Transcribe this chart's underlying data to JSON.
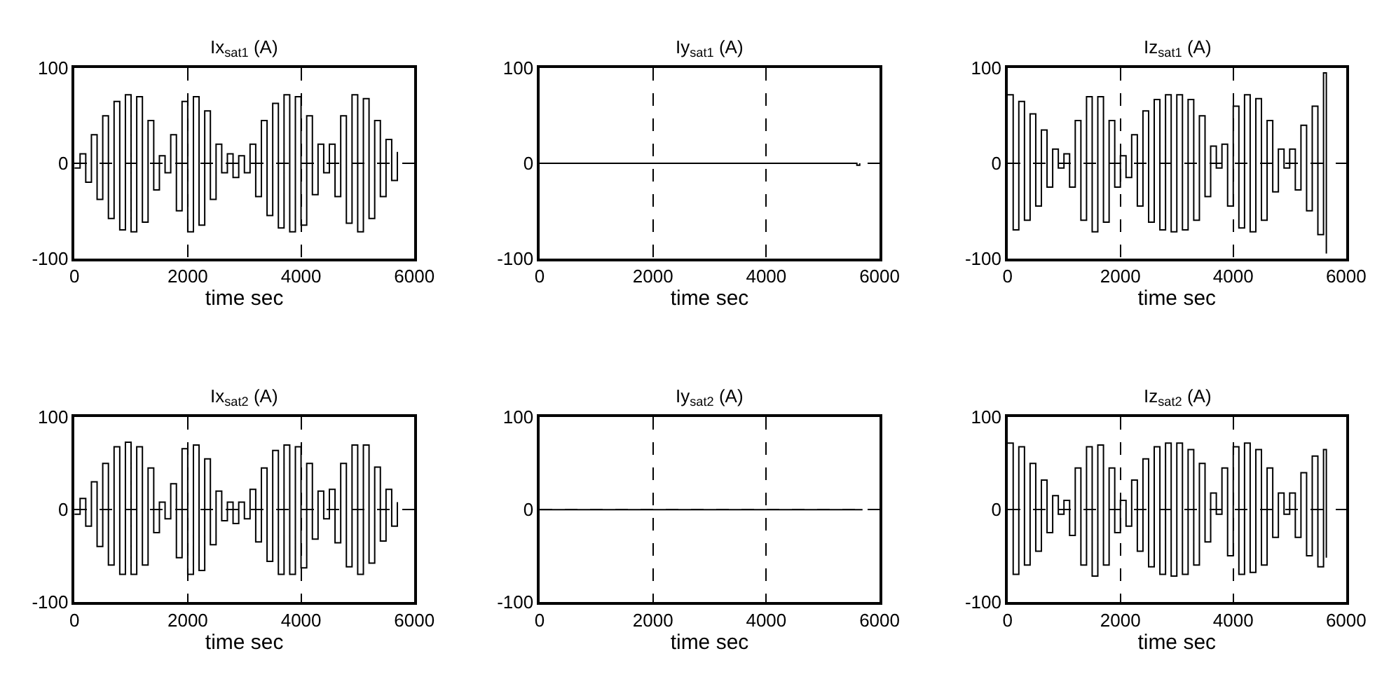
{
  "chart_data": [
    {
      "type": "step",
      "title": "Ix$_{sat1}$ (A)",
      "xlabel": "time sec",
      "xlim": [
        0,
        6000
      ],
      "xticks": [
        0,
        2000,
        4000,
        6000
      ],
      "ylim": [
        -100,
        100
      ],
      "yticks": [
        -100,
        0,
        100
      ],
      "grid": true,
      "line_style": "solid",
      "x": [
        0,
        100,
        200,
        300,
        400,
        500,
        600,
        700,
        800,
        900,
        1000,
        1100,
        1200,
        1300,
        1400,
        1500,
        1600,
        1700,
        1800,
        1900,
        2000,
        2100,
        2200,
        2300,
        2400,
        2500,
        2600,
        2700,
        2800,
        2900,
        3000,
        3100,
        3200,
        3300,
        3400,
        3500,
        3600,
        3700,
        3800,
        3900,
        4000,
        4100,
        4200,
        4300,
        4400,
        4500,
        4600,
        4700,
        4800,
        4900,
        5000,
        5100,
        5200,
        5300,
        5400,
        5500,
        5600,
        5700
      ],
      "series": [
        {
          "color": "#000000",
          "values": [
            -5,
            10,
            -20,
            30,
            -38,
            50,
            -58,
            65,
            -70,
            72,
            -72,
            70,
            -62,
            45,
            -28,
            8,
            -10,
            30,
            -50,
            65,
            -72,
            70,
            -65,
            55,
            -38,
            20,
            -10,
            10,
            -15,
            8,
            -10,
            20,
            -35,
            45,
            -55,
            63,
            -68,
            72,
            -72,
            70,
            -65,
            50,
            -33,
            20,
            -10,
            20,
            -35,
            50,
            -63,
            72,
            -72,
            68,
            -58,
            45,
            -35,
            25,
            -18,
            12
          ]
        }
      ]
    },
    {
      "type": "step",
      "title": "Iy$_{sat1}$ (A)",
      "xlabel": "time sec",
      "xlim": [
        0,
        6000
      ],
      "xticks": [
        0,
        2000,
        4000,
        6000
      ],
      "ylim": [
        -100,
        100
      ],
      "yticks": [
        -100,
        0,
        100
      ],
      "grid": true,
      "line_style": "solid",
      "x": [
        0,
        5550,
        5600,
        5650
      ],
      "series": [
        {
          "color": "#000000",
          "values": [
            0,
            0,
            -2,
            0
          ]
        }
      ]
    },
    {
      "type": "step",
      "title": "Iz$_{sat1}$ (A)",
      "xlabel": "time sec",
      "xlim": [
        0,
        6000
      ],
      "xticks": [
        0,
        2000,
        4000,
        6000
      ],
      "ylim": [
        -100,
        100
      ],
      "yticks": [
        -100,
        0,
        100
      ],
      "grid": true,
      "line_style": "solid",
      "x": [
        0,
        100,
        200,
        300,
        400,
        500,
        600,
        700,
        800,
        900,
        1000,
        1100,
        1200,
        1300,
        1400,
        1500,
        1600,
        1700,
        1800,
        1900,
        2000,
        2100,
        2200,
        2300,
        2400,
        2500,
        2600,
        2700,
        2800,
        2900,
        3000,
        3100,
        3200,
        3300,
        3400,
        3500,
        3600,
        3700,
        3800,
        3900,
        4000,
        4100,
        4200,
        4300,
        4400,
        4500,
        4600,
        4700,
        4800,
        4900,
        5000,
        5100,
        5200,
        5300,
        5400,
        5500,
        5600,
        5650
      ],
      "series": [
        {
          "color": "#000000",
          "values": [
            72,
            -70,
            65,
            -60,
            52,
            -45,
            35,
            -25,
            15,
            -5,
            10,
            -25,
            45,
            -60,
            70,
            -72,
            70,
            -62,
            45,
            -25,
            8,
            -15,
            30,
            -45,
            55,
            -62,
            67,
            -70,
            72,
            -72,
            72,
            -70,
            67,
            -60,
            50,
            -35,
            18,
            -5,
            20,
            -45,
            60,
            -68,
            72,
            -72,
            68,
            -60,
            45,
            -30,
            15,
            -5,
            15,
            -28,
            40,
            -50,
            60,
            -75,
            95,
            -95
          ]
        }
      ]
    },
    {
      "type": "step",
      "title": "Ix$_{sat2}$ (A)",
      "xlabel": "time sec",
      "xlim": [
        0,
        6000
      ],
      "xticks": [
        0,
        2000,
        4000,
        6000
      ],
      "ylim": [
        -100,
        100
      ],
      "yticks": [
        -100,
        0,
        100
      ],
      "grid": true,
      "line_style": "solid",
      "x": [
        0,
        100,
        200,
        300,
        400,
        500,
        600,
        700,
        800,
        900,
        1000,
        1100,
        1200,
        1300,
        1400,
        1500,
        1600,
        1700,
        1800,
        1900,
        2000,
        2100,
        2200,
        2300,
        2400,
        2500,
        2600,
        2700,
        2800,
        2900,
        3000,
        3100,
        3200,
        3300,
        3400,
        3500,
        3600,
        3700,
        3800,
        3900,
        4000,
        4100,
        4200,
        4300,
        4400,
        4500,
        4600,
        4700,
        4800,
        4900,
        5000,
        5100,
        5200,
        5300,
        5400,
        5500,
        5600,
        5700
      ],
      "series": [
        {
          "color": "#000000",
          "values": [
            -5,
            12,
            -18,
            30,
            -40,
            50,
            -60,
            68,
            -70,
            73,
            -70,
            68,
            -60,
            45,
            -25,
            8,
            -10,
            28,
            -52,
            66,
            -70,
            70,
            -66,
            55,
            -38,
            20,
            -12,
            8,
            -15,
            8,
            -10,
            22,
            -35,
            45,
            -56,
            64,
            -70,
            70,
            -70,
            68,
            -63,
            50,
            -32,
            20,
            -10,
            22,
            -36,
            50,
            -62,
            70,
            -70,
            70,
            -58,
            46,
            -34,
            22,
            -18,
            8
          ]
        }
      ]
    },
    {
      "type": "step",
      "title": "Iy$_{sat2}$ (A)",
      "xlabel": "time sec",
      "xlim": [
        0,
        6000
      ],
      "xticks": [
        0,
        2000,
        4000,
        6000
      ],
      "ylim": [
        -100,
        100
      ],
      "yticks": [
        -100,
        0,
        100
      ],
      "grid": true,
      "line_style": "solid",
      "x": [
        0,
        5700
      ],
      "series": [
        {
          "color": "#000000",
          "values": [
            0,
            0
          ]
        }
      ]
    },
    {
      "type": "step",
      "title": "Iz$_{sat2}$ (A)",
      "xlabel": "time sec",
      "xlim": [
        0,
        6000
      ],
      "xticks": [
        0,
        2000,
        4000,
        6000
      ],
      "ylim": [
        -100,
        100
      ],
      "yticks": [
        -100,
        0,
        100
      ],
      "grid": true,
      "line_style": "solid",
      "x": [
        0,
        100,
        200,
        300,
        400,
        500,
        600,
        700,
        800,
        900,
        1000,
        1100,
        1200,
        1300,
        1400,
        1500,
        1600,
        1700,
        1800,
        1900,
        2000,
        2100,
        2200,
        2300,
        2400,
        2500,
        2600,
        2700,
        2800,
        2900,
        3000,
        3100,
        3200,
        3300,
        3400,
        3500,
        3600,
        3700,
        3800,
        3900,
        4000,
        4100,
        4200,
        4300,
        4400,
        4500,
        4600,
        4700,
        4800,
        4900,
        5000,
        5100,
        5200,
        5300,
        5400,
        5500,
        5600,
        5650
      ],
      "series": [
        {
          "color": "#000000",
          "values": [
            72,
            -70,
            68,
            -60,
            50,
            -45,
            32,
            -25,
            15,
            -5,
            10,
            -28,
            45,
            -60,
            68,
            -72,
            70,
            -60,
            45,
            -25,
            10,
            -18,
            32,
            -45,
            55,
            -62,
            68,
            -70,
            72,
            -72,
            72,
            -70,
            65,
            -60,
            50,
            -35,
            18,
            -5,
            45,
            -50,
            68,
            -70,
            72,
            -68,
            65,
            -60,
            45,
            -30,
            18,
            -5,
            18,
            -30,
            40,
            -50,
            58,
            -62,
            65,
            -52
          ]
        }
      ]
    }
  ]
}
